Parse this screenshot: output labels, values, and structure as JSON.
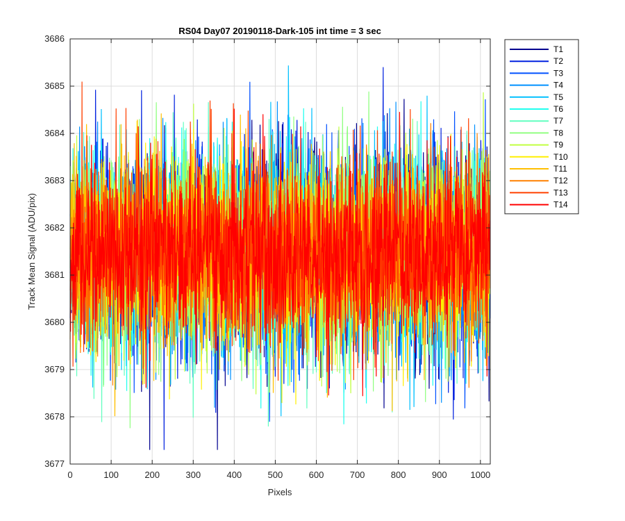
{
  "chart_data": {
    "type": "line",
    "title": "RS04 Day07 20190118-Dark-105 int time = 3 sec",
    "xlabel": "Pixels",
    "ylabel": "Track Mean Signal (ADU/pix)",
    "xlim": [
      0,
      1024
    ],
    "ylim": [
      3677,
      3686
    ],
    "xticks": [
      0,
      100,
      200,
      300,
      400,
      500,
      600,
      700,
      800,
      900,
      1000
    ],
    "yticks": [
      3677,
      3678,
      3679,
      3680,
      3681,
      3682,
      3683,
      3684,
      3685,
      3686
    ],
    "grid": true,
    "legend_position": "outside-top-right",
    "noise": {
      "mean": 3681.5,
      "std": 1.1,
      "points_per_series": 1024,
      "note": "per-pixel dark-frame noise traces; individual values not legible"
    },
    "series": [
      {
        "name": "T1",
        "color": "#00008f"
      },
      {
        "name": "T2",
        "color": "#0020df"
      },
      {
        "name": "T3",
        "color": "#0050ff"
      },
      {
        "name": "T4",
        "color": "#0090ff"
      },
      {
        "name": "T5",
        "color": "#00c0ff"
      },
      {
        "name": "T6",
        "color": "#20ffef"
      },
      {
        "name": "T7",
        "color": "#60ffbf"
      },
      {
        "name": "T8",
        "color": "#90ff80"
      },
      {
        "name": "T9",
        "color": "#c0ff40"
      },
      {
        "name": "T10",
        "color": "#ffef00"
      },
      {
        "name": "T11",
        "color": "#ffbf00"
      },
      {
        "name": "T12",
        "color": "#ff8000"
      },
      {
        "name": "T13",
        "color": "#ff4000"
      },
      {
        "name": "T14",
        "color": "#ff0000"
      }
    ]
  }
}
